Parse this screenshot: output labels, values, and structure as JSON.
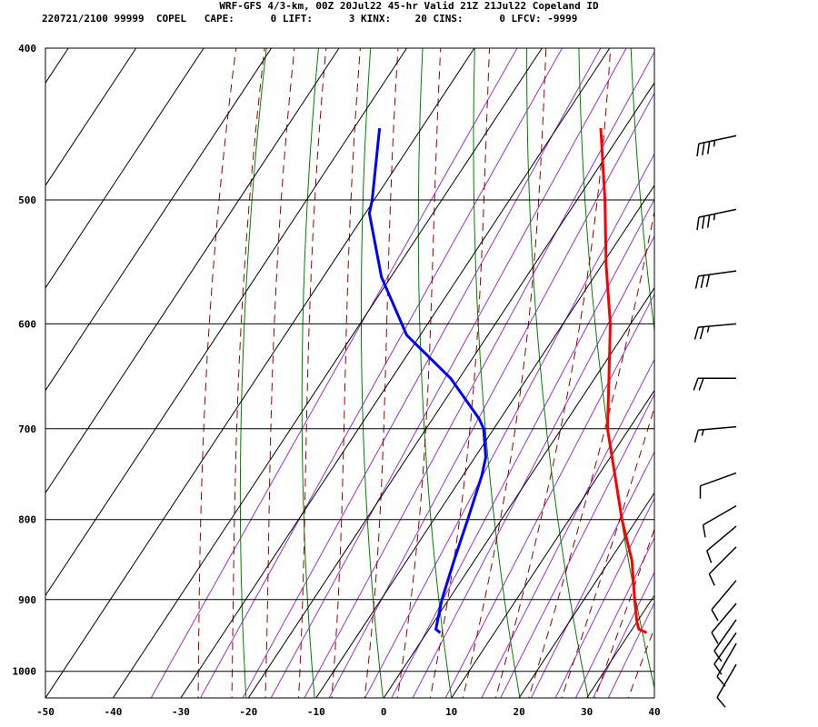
{
  "header": {
    "title": "WRF-GFS 4/3-km, 00Z 20Jul22 45-hr Valid 21Z 21Jul22 Copeland ID",
    "stats": "220721/2100 99999  COPEL   CAPE:      0 LIFT:      3 KINX:    20 CINS:      0 LFCV: -9999"
  },
  "chart_data": {
    "type": "line",
    "subtype": "skew-T log-P sounding",
    "xlim": [
      -50,
      40
    ],
    "ylim": [
      1040,
      400
    ],
    "y_scale": "log",
    "x_ticks": [
      "-50",
      "-40",
      "-30",
      "-20",
      "-10",
      "0",
      "10",
      "20",
      "30",
      "40"
    ],
    "y_ticks": [
      "400",
      "500",
      "600",
      "700",
      "800",
      "900",
      "1000"
    ],
    "grid": true,
    "colors": {
      "temperature": "#ff0000",
      "dewpoint": "#0000ff",
      "isotherm": "#000000",
      "dry_adiabat": "#008000",
      "moist_adiabat": "#990000",
      "mixing_ratio": "#9933cc"
    },
    "series": [
      {
        "key": "temperature",
        "points": [
          {
            "p": 945,
            "t": 32.5
          },
          {
            "p": 940,
            "t": 31.0
          },
          {
            "p": 930,
            "t": 30.0
          },
          {
            "p": 900,
            "t": 27.5
          },
          {
            "p": 850,
            "t": 23.3
          },
          {
            "p": 800,
            "t": 17.8
          },
          {
            "p": 750,
            "t": 12.5
          },
          {
            "p": 700,
            "t": 6.8
          },
          {
            "p": 650,
            "t": 2.1
          },
          {
            "p": 600,
            "t": -3.0
          },
          {
            "p": 550,
            "t": -9.4
          },
          {
            "p": 500,
            "t": -15.9
          },
          {
            "p": 450,
            "t": -23.5
          }
        ]
      },
      {
        "key": "dewpoint",
        "points": [
          {
            "p": 945,
            "t": 2.0
          },
          {
            "p": 940,
            "t": 1.0
          },
          {
            "p": 930,
            "t": 0.5
          },
          {
            "p": 900,
            "t": -1.0
          },
          {
            "p": 850,
            "t": -3.0
          },
          {
            "p": 800,
            "t": -5.0
          },
          {
            "p": 750,
            "t": -7.2
          },
          {
            "p": 730,
            "t": -8.4
          },
          {
            "p": 700,
            "t": -11.5
          },
          {
            "p": 690,
            "t": -13.1
          },
          {
            "p": 650,
            "t": -21.3
          },
          {
            "p": 610,
            "t": -32.0
          },
          {
            "p": 560,
            "t": -41.4
          },
          {
            "p": 510,
            "t": -49.4
          },
          {
            "p": 500,
            "t": -50.3
          },
          {
            "p": 450,
            "t": -56.2
          }
        ]
      }
    ],
    "wind_barbs": [
      {
        "p": 455,
        "dir": 258,
        "speed": 35
      },
      {
        "p": 507,
        "dir": 258,
        "speed": 35
      },
      {
        "p": 555,
        "dir": 262,
        "speed": 30
      },
      {
        "p": 600,
        "dir": 265,
        "speed": 25
      },
      {
        "p": 650,
        "dir": 270,
        "speed": 20
      },
      {
        "p": 698,
        "dir": 265,
        "speed": 15
      },
      {
        "p": 747,
        "dir": 250,
        "speed": 10
      },
      {
        "p": 784,
        "dir": 240,
        "speed": 10
      },
      {
        "p": 808,
        "dir": 230,
        "speed": 10
      },
      {
        "p": 833,
        "dir": 225,
        "speed": 10
      },
      {
        "p": 875,
        "dir": 220,
        "speed": 10
      },
      {
        "p": 905,
        "dir": 220,
        "speed": 10
      },
      {
        "p": 927,
        "dir": 215,
        "speed": 10
      },
      {
        "p": 945,
        "dir": 215,
        "speed": 10
      },
      {
        "p": 960,
        "dir": 210,
        "speed": 10
      },
      {
        "p": 990,
        "dir": 210,
        "speed": 10
      }
    ]
  }
}
